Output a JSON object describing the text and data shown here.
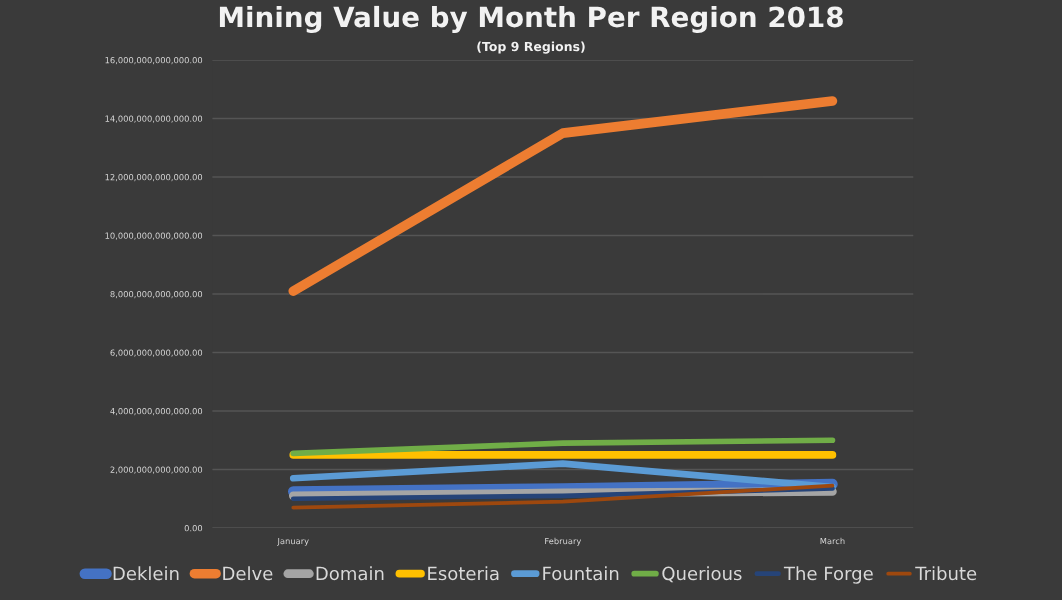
{
  "chart_data": {
    "type": "line",
    "title": "Mining Value by Month Per Region 2018",
    "subtitle": "(Top 9 Regions)",
    "categories": [
      "January",
      "February",
      "March"
    ],
    "series": [
      {
        "name": "Deklein",
        "color": "#4472c4",
        "values": [
          1250000000000.0,
          1350000000000.0,
          1500000000000.0
        ]
      },
      {
        "name": "Delve",
        "color": "#ed7d31",
        "values": [
          8100000000000.0,
          13500000000000.0,
          14600000000000.0
        ]
      },
      {
        "name": "Domain",
        "color": "#a5a5a5",
        "values": [
          1100000000000.0,
          1200000000000.0,
          1250000000000.0
        ]
      },
      {
        "name": "Esoteria",
        "color": "#ffc000",
        "values": [
          2500000000000.0,
          2500000000000.0,
          2500000000000.0
        ]
      },
      {
        "name": "Fountain",
        "color": "#5b9bd5",
        "values": [
          1700000000000.0,
          2200000000000.0,
          1400000000000.0
        ]
      },
      {
        "name": "Querious",
        "color": "#70ad47",
        "values": [
          2550000000000.0,
          2900000000000.0,
          3000000000000.0
        ]
      },
      {
        "name": "The Forge",
        "color": "#264478",
        "values": [
          1000000000000.0,
          1100000000000.0,
          1350000000000.0
        ]
      },
      {
        "name": "Tribute",
        "color": "#9e480e",
        "values": [
          700000000000.0,
          900000000000.0,
          1450000000000.0
        ]
      }
    ],
    "ylim": [
      0,
      16000000000000.0
    ],
    "yticks": [
      {
        "value": 0,
        "label": "0.00"
      },
      {
        "value": 2000000000000.0,
        "label": "2,000,000,000,000.00"
      },
      {
        "value": 4000000000000.0,
        "label": "4,000,000,000,000.00"
      },
      {
        "value": 6000000000000.0,
        "label": "6,000,000,000,000.00"
      },
      {
        "value": 8000000000000.0,
        "label": "8,000,000,000,000.00"
      },
      {
        "value": 10000000000000.0,
        "label": "10,000,000,000,000.00"
      },
      {
        "value": 12000000000000.0,
        "label": "12,000,000,000,000.00"
      },
      {
        "value": 14000000000000.0,
        "label": "14,000,000,000,000.00"
      },
      {
        "value": 16000000000000.0,
        "label": "16,000,000,000,000.00"
      }
    ],
    "grid": "y",
    "legend": "bottom",
    "marker": "none",
    "line_style": "solid"
  }
}
